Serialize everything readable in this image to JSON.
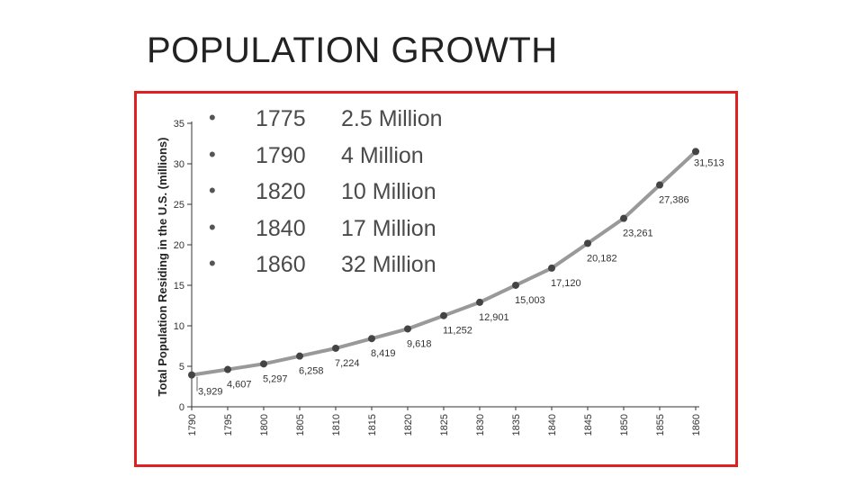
{
  "slide": {
    "title": "POPULATION GROWTH",
    "frame_color": "#e02020"
  },
  "bullets": [
    {
      "year": "1775",
      "population": "2.5 Million"
    },
    {
      "year": "1790",
      "population": "4 Million"
    },
    {
      "year": "1820",
      "population": "10 Million"
    },
    {
      "year": "1840",
      "population": "17 Million"
    },
    {
      "year": "1860",
      "population": "32 Million"
    }
  ],
  "chart_data": {
    "type": "line",
    "title": "",
    "xlabel": "",
    "ylabel": "Total Population Residing in the U.S. (millions)",
    "x": [
      1790,
      1795,
      1800,
      1805,
      1810,
      1815,
      1820,
      1825,
      1830,
      1835,
      1840,
      1845,
      1850,
      1855,
      1860
    ],
    "x_tick_labels": [
      "1790",
      "1795",
      "1800",
      "1805",
      "1810",
      "1815",
      "1820",
      "1825",
      "1830",
      "1835",
      "1840",
      "1845",
      "1850",
      "1855",
      "1860"
    ],
    "y": [
      3.929,
      4.607,
      5.297,
      6.258,
      7.224,
      8.419,
      9.618,
      11.252,
      12.901,
      15.003,
      17.12,
      20.182,
      23.261,
      27.386,
      31.513
    ],
    "data_labels": [
      "3,929",
      "4,607",
      "5,297",
      "6,258",
      "7,224",
      "8,419",
      "9,618",
      "11,252",
      "12,901",
      "15,003",
      "17,120",
      "20,182",
      "23,261",
      "27,386",
      "31,513"
    ],
    "y_ticks": [
      0,
      5,
      10,
      15,
      20,
      25,
      30,
      35
    ],
    "ylim": [
      0,
      35
    ],
    "xlim": [
      1790,
      1860
    ],
    "grid": false,
    "line_color": "#999999",
    "marker_color": "#444444"
  }
}
